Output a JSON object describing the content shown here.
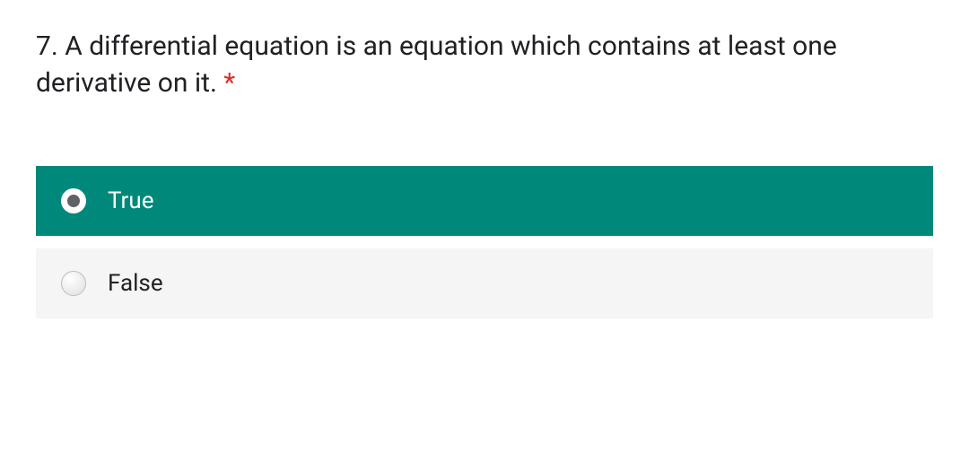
{
  "question": {
    "number": "7.",
    "text": "A differential equation is an equation which contains at least one derivative on it.",
    "required_marker": "*",
    "required_color": "#d93025",
    "text_color": "#202124",
    "font_size": 30
  },
  "options": [
    {
      "label": "True",
      "selected": true
    },
    {
      "label": "False",
      "selected": false
    }
  ],
  "colors": {
    "selected_bg": "#00897b",
    "unselected_bg": "#f5f5f5",
    "selected_text": "#ffffff",
    "unselected_text": "#202124",
    "radio_inner": "#5f6368",
    "page_bg": "#ffffff"
  }
}
